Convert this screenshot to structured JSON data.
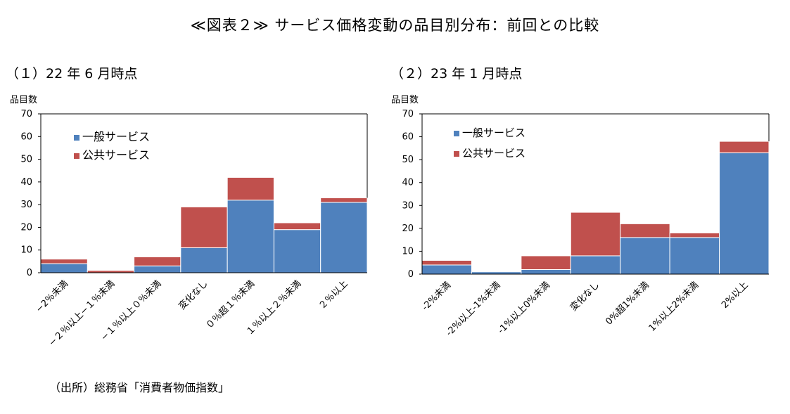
{
  "title": "≪図表２≫ サービス価格変動の品目別分布：前回との比較",
  "source": "（出所）総務省「消費者物価指数」",
  "colors": {
    "general": "#4f81bd",
    "public": "#c0504d"
  },
  "chart_data": [
    {
      "type": "bar",
      "stacked": true,
      "title": "（１）22 年 6 月時点",
      "ylabel": "品目数",
      "ylim": [
        0,
        70
      ],
      "yticks": [
        0,
        10,
        20,
        30,
        40,
        50,
        60,
        70
      ],
      "legend": "top-left",
      "categories": [
        "−2％未満",
        "−２％以上−１％未満",
        "−１％以上０％未満",
        "変化なし",
        "０％超１％未満",
        "１％以上２％未満",
        "２％以上"
      ],
      "series": [
        {
          "name": "一般サービス",
          "values": [
            4,
            0,
            3,
            11,
            32,
            19,
            31
          ]
        },
        {
          "name": "公共サービス",
          "values": [
            2,
            1,
            4,
            18,
            10,
            3,
            2
          ]
        }
      ]
    },
    {
      "type": "bar",
      "stacked": true,
      "title": "（２）23 年 1 月時点",
      "ylabel": "品目数",
      "ylim": [
        0,
        70
      ],
      "yticks": [
        0,
        10,
        20,
        30,
        40,
        50,
        60,
        70
      ],
      "legend": "top-left",
      "categories": [
        "-2%未満",
        "-2%以上-1%未満",
        "-1%以上0%未満",
        "変化なし",
        "0%超1%未満",
        "1%以上2%未満",
        "2%以上"
      ],
      "series": [
        {
          "name": "一般サービス",
          "values": [
            4,
            1,
            2,
            8,
            16,
            16,
            53
          ]
        },
        {
          "name": "公共サービス",
          "values": [
            2,
            0,
            6,
            19,
            6,
            2,
            5
          ]
        }
      ]
    }
  ]
}
